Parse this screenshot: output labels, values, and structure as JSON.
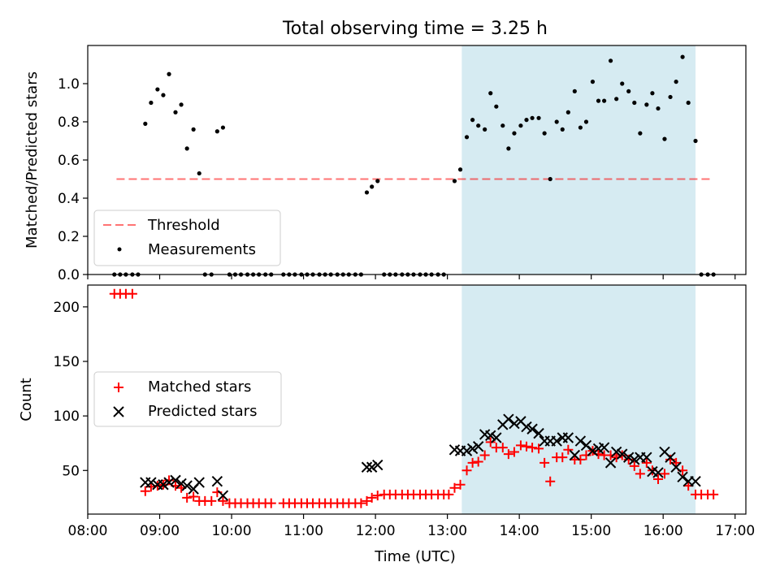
{
  "figure": {
    "title": "Total observing time = 3.25 h"
  },
  "colors": {
    "highlight": "#add8e6",
    "threshold": "#ff0000",
    "measurement": "#000000",
    "matched": "#ff0000",
    "predicted": "#000000"
  },
  "chart_data": [
    {
      "type": "scatter",
      "ylabel": "Matched/Predicted stars",
      "xlim": [
        8.0,
        17.15
      ],
      "ylim": [
        0,
        1.2
      ],
      "xticks": [
        8,
        9,
        10,
        11,
        12,
        13,
        14,
        15,
        16,
        17
      ],
      "yticks": [
        0,
        0.2,
        0.4,
        0.6,
        0.8,
        1.0
      ],
      "ytick_labels": [
        "0.0",
        "0.2",
        "0.4",
        "0.6",
        "0.8",
        "1.0"
      ],
      "observing_window": [
        13.2,
        16.45
      ],
      "threshold": {
        "name": "Threshold",
        "y": 0.5,
        "x": [
          8.4,
          16.7
        ]
      },
      "legend": {
        "position": "lower left",
        "entries": [
          "Threshold",
          "Measurements"
        ]
      },
      "series": [
        {
          "name": "Measurements",
          "points": [
            [
              8.37,
              0
            ],
            [
              8.45,
              0
            ],
            [
              8.53,
              0
            ],
            [
              8.62,
              0
            ],
            [
              8.7,
              0
            ],
            [
              8.8,
              0.79
            ],
            [
              8.88,
              0.9
            ],
            [
              8.97,
              0.97
            ],
            [
              9.05,
              0.94
            ],
            [
              9.13,
              1.05
            ],
            [
              9.22,
              0.85
            ],
            [
              9.3,
              0.89
            ],
            [
              9.38,
              0.66
            ],
            [
              9.47,
              0.76
            ],
            [
              9.55,
              0.53
            ],
            [
              9.63,
              0
            ],
            [
              9.72,
              0
            ],
            [
              9.8,
              0.75
            ],
            [
              9.88,
              0.77
            ],
            [
              9.97,
              0
            ],
            [
              10.05,
              0
            ],
            [
              10.13,
              0
            ],
            [
              10.22,
              0
            ],
            [
              10.3,
              0
            ],
            [
              10.38,
              0
            ],
            [
              10.47,
              0
            ],
            [
              10.55,
              0
            ],
            [
              10.72,
              0
            ],
            [
              10.8,
              0
            ],
            [
              10.88,
              0
            ],
            [
              10.97,
              0
            ],
            [
              11.05,
              0
            ],
            [
              11.13,
              0
            ],
            [
              11.22,
              0
            ],
            [
              11.3,
              0
            ],
            [
              11.38,
              0
            ],
            [
              11.47,
              0
            ],
            [
              11.55,
              0
            ],
            [
              11.63,
              0
            ],
            [
              11.72,
              0
            ],
            [
              11.8,
              0
            ],
            [
              11.88,
              0.43
            ],
            [
              11.95,
              0.46
            ],
            [
              12.03,
              0.49
            ],
            [
              12.12,
              0
            ],
            [
              12.2,
              0
            ],
            [
              12.28,
              0
            ],
            [
              12.37,
              0
            ],
            [
              12.45,
              0
            ],
            [
              12.53,
              0
            ],
            [
              12.62,
              0
            ],
            [
              12.7,
              0
            ],
            [
              12.78,
              0
            ],
            [
              12.87,
              0
            ],
            [
              12.95,
              0
            ],
            [
              13.1,
              0.49
            ],
            [
              13.18,
              0.55
            ],
            [
              13.27,
              0.72
            ],
            [
              13.35,
              0.81
            ],
            [
              13.43,
              0.78
            ],
            [
              13.52,
              0.76
            ],
            [
              13.6,
              0.95
            ],
            [
              13.68,
              0.88
            ],
            [
              13.77,
              0.78
            ],
            [
              13.85,
              0.66
            ],
            [
              13.93,
              0.74
            ],
            [
              14.02,
              0.78
            ],
            [
              14.1,
              0.81
            ],
            [
              14.18,
              0.82
            ],
            [
              14.27,
              0.82
            ],
            [
              14.35,
              0.74
            ],
            [
              14.43,
              0.5
            ],
            [
              14.52,
              0.8
            ],
            [
              14.6,
              0.76
            ],
            [
              14.68,
              0.85
            ],
            [
              14.77,
              0.96
            ],
            [
              14.85,
              0.77
            ],
            [
              14.93,
              0.8
            ],
            [
              15.02,
              1.01
            ],
            [
              15.1,
              0.91
            ],
            [
              15.18,
              0.91
            ],
            [
              15.27,
              1.12
            ],
            [
              15.35,
              0.92
            ],
            [
              15.43,
              1.0
            ],
            [
              15.52,
              0.96
            ],
            [
              15.6,
              0.9
            ],
            [
              15.68,
              0.74
            ],
            [
              15.77,
              0.89
            ],
            [
              15.85,
              0.95
            ],
            [
              15.93,
              0.87
            ],
            [
              16.02,
              0.71
            ],
            [
              16.1,
              0.93
            ],
            [
              16.18,
              1.01
            ],
            [
              16.27,
              1.14
            ],
            [
              16.35,
              0.9
            ],
            [
              16.45,
              0.7
            ],
            [
              16.53,
              0
            ],
            [
              16.62,
              0
            ],
            [
              16.7,
              0
            ]
          ]
        }
      ]
    },
    {
      "type": "scatter",
      "xlabel": "Time (UTC)",
      "ylabel": "Count",
      "xlim": [
        8.0,
        17.15
      ],
      "ylim": [
        10,
        220
      ],
      "xticks": [
        8,
        9,
        10,
        11,
        12,
        13,
        14,
        15,
        16,
        17
      ],
      "xtick_labels": [
        "08:00",
        "09:00",
        "10:00",
        "11:00",
        "12:00",
        "13:00",
        "14:00",
        "15:00",
        "16:00",
        "17:00"
      ],
      "yticks": [
        50,
        100,
        150,
        200
      ],
      "ytick_labels": [
        "50",
        "100",
        "150",
        "200"
      ],
      "observing_window": [
        13.2,
        16.45
      ],
      "legend": {
        "position": "center left",
        "entries": [
          "Matched stars",
          "Predicted stars"
        ]
      },
      "series": [
        {
          "name": "Matched stars",
          "points": [
            [
              8.37,
              212
            ],
            [
              8.45,
              212
            ],
            [
              8.53,
              212
            ],
            [
              8.62,
              212
            ],
            [
              8.8,
              31
            ],
            [
              8.88,
              35
            ],
            [
              8.97,
              36
            ],
            [
              9.05,
              37
            ],
            [
              9.13,
              41
            ],
            [
              9.22,
              36
            ],
            [
              9.3,
              34
            ],
            [
              9.38,
              25
            ],
            [
              9.47,
              26
            ],
            [
              9.55,
              22
            ],
            [
              9.63,
              22
            ],
            [
              9.72,
              22
            ],
            [
              9.8,
              30
            ],
            [
              9.88,
              22
            ],
            [
              9.97,
              20
            ],
            [
              10.05,
              20
            ],
            [
              10.13,
              20
            ],
            [
              10.22,
              20
            ],
            [
              10.3,
              20
            ],
            [
              10.38,
              20
            ],
            [
              10.47,
              20
            ],
            [
              10.55,
              20
            ],
            [
              10.72,
              20
            ],
            [
              10.8,
              20
            ],
            [
              10.88,
              20
            ],
            [
              10.97,
              20
            ],
            [
              11.05,
              20
            ],
            [
              11.13,
              20
            ],
            [
              11.22,
              20
            ],
            [
              11.3,
              20
            ],
            [
              11.38,
              20
            ],
            [
              11.47,
              20
            ],
            [
              11.55,
              20
            ],
            [
              11.63,
              20
            ],
            [
              11.72,
              20
            ],
            [
              11.8,
              20
            ],
            [
              11.88,
              22
            ],
            [
              11.95,
              25
            ],
            [
              12.03,
              27
            ],
            [
              12.12,
              28
            ],
            [
              12.2,
              28
            ],
            [
              12.28,
              28
            ],
            [
              12.37,
              28
            ],
            [
              12.45,
              28
            ],
            [
              12.53,
              28
            ],
            [
              12.62,
              28
            ],
            [
              12.7,
              28
            ],
            [
              12.78,
              28
            ],
            [
              12.87,
              28
            ],
            [
              12.95,
              28
            ],
            [
              13.02,
              28
            ],
            [
              13.1,
              34
            ],
            [
              13.18,
              37
            ],
            [
              13.27,
              50
            ],
            [
              13.35,
              57
            ],
            [
              13.43,
              58
            ],
            [
              13.52,
              64
            ],
            [
              13.6,
              76
            ],
            [
              13.68,
              71
            ],
            [
              13.77,
              71
            ],
            [
              13.85,
              65
            ],
            [
              13.93,
              67
            ],
            [
              14.02,
              73
            ],
            [
              14.1,
              72
            ],
            [
              14.18,
              71
            ],
            [
              14.27,
              70
            ],
            [
              14.35,
              57
            ],
            [
              14.43,
              40
            ],
            [
              14.52,
              62
            ],
            [
              14.6,
              62
            ],
            [
              14.68,
              69
            ],
            [
              14.77,
              60
            ],
            [
              14.85,
              60
            ],
            [
              14.93,
              64
            ],
            [
              15.02,
              68
            ],
            [
              15.1,
              65
            ],
            [
              15.18,
              64
            ],
            [
              15.27,
              64
            ],
            [
              15.35,
              62
            ],
            [
              15.43,
              64
            ],
            [
              15.52,
              60
            ],
            [
              15.6,
              54
            ],
            [
              15.68,
              47
            ],
            [
              15.77,
              57
            ],
            [
              15.85,
              50
            ],
            [
              15.93,
              42
            ],
            [
              16.02,
              47
            ],
            [
              16.1,
              60
            ],
            [
              16.18,
              57
            ],
            [
              16.27,
              50
            ],
            [
              16.35,
              36
            ],
            [
              16.45,
              28
            ],
            [
              16.53,
              28
            ],
            [
              16.62,
              28
            ],
            [
              16.7,
              28
            ]
          ]
        },
        {
          "name": "Predicted stars",
          "points": [
            [
              8.8,
              39
            ],
            [
              8.88,
              39
            ],
            [
              8.97,
              37
            ],
            [
              9.05,
              37
            ],
            [
              9.13,
              39
            ],
            [
              9.22,
              41
            ],
            [
              9.3,
              38
            ],
            [
              9.38,
              36
            ],
            [
              9.47,
              33
            ],
            [
              9.55,
              39
            ],
            [
              9.8,
              40
            ],
            [
              9.88,
              27
            ],
            [
              11.88,
              53
            ],
            [
              11.95,
              53
            ],
            [
              12.03,
              55
            ],
            [
              13.1,
              69
            ],
            [
              13.18,
              68
            ],
            [
              13.27,
              68
            ],
            [
              13.35,
              70
            ],
            [
              13.43,
              72
            ],
            [
              13.52,
              83
            ],
            [
              13.6,
              82
            ],
            [
              13.68,
              80
            ],
            [
              13.77,
              92
            ],
            [
              13.85,
              97
            ],
            [
              13.93,
              93
            ],
            [
              14.02,
              95
            ],
            [
              14.1,
              90
            ],
            [
              14.18,
              88
            ],
            [
              14.27,
              84
            ],
            [
              14.35,
              77
            ],
            [
              14.43,
              77
            ],
            [
              14.52,
              77
            ],
            [
              14.6,
              80
            ],
            [
              14.68,
              80
            ],
            [
              14.77,
              64
            ],
            [
              14.85,
              77
            ],
            [
              14.93,
              73
            ],
            [
              15.02,
              68
            ],
            [
              15.1,
              70
            ],
            [
              15.18,
              71
            ],
            [
              15.27,
              57
            ],
            [
              15.35,
              67
            ],
            [
              15.43,
              65
            ],
            [
              15.52,
              62
            ],
            [
              15.6,
              60
            ],
            [
              15.68,
              62
            ],
            [
              15.77,
              62
            ],
            [
              15.85,
              49
            ],
            [
              15.93,
              48
            ],
            [
              16.02,
              67
            ],
            [
              16.1,
              62
            ],
            [
              16.18,
              53
            ],
            [
              16.27,
              44
            ],
            [
              16.35,
              40
            ],
            [
              16.45,
              40
            ]
          ]
        }
      ]
    }
  ]
}
